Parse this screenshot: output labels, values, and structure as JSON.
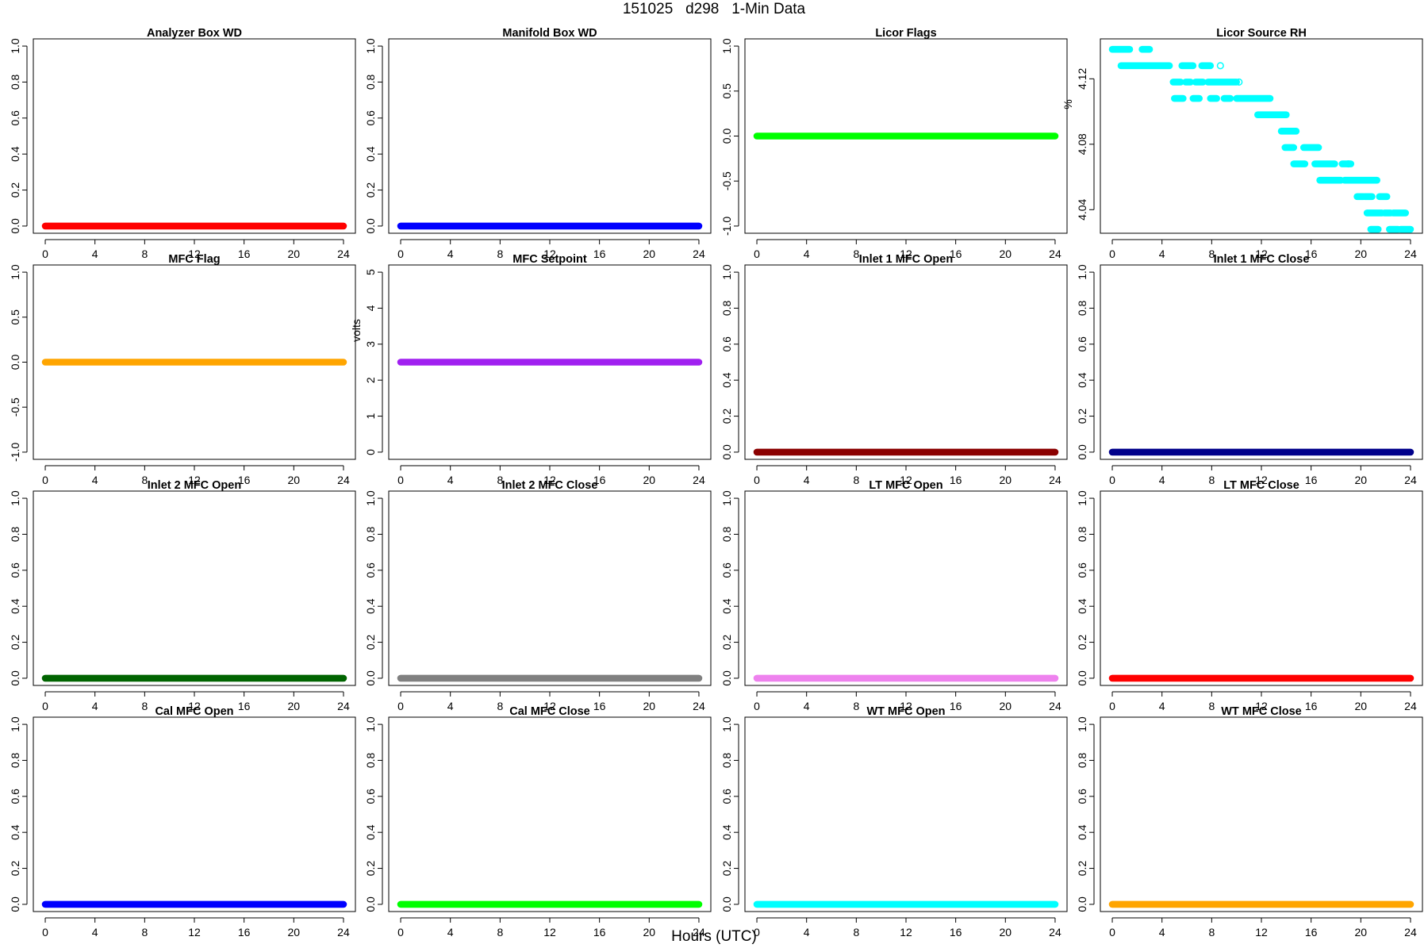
{
  "title": "151025   d298   1-Min Data",
  "xlabel": "Hours (UTC)",
  "chart_data": [
    {
      "type": "scatter",
      "title": "Analyzer Box WD",
      "ylabel": "",
      "color": "#ff0000",
      "xlim": [
        0,
        24
      ],
      "xticks": [
        0,
        4,
        8,
        12,
        16,
        20,
        24
      ],
      "ylim": [
        0,
        1
      ],
      "yticks": [
        0,
        0.2,
        0.4,
        0.6,
        0.8,
        1.0
      ],
      "ytick_labels": [
        "0.0",
        "0.2",
        "0.4",
        "0.6",
        "0.8",
        "1.0"
      ],
      "constant": 0.0,
      "x_range": [
        0,
        24
      ]
    },
    {
      "type": "scatter",
      "title": "Manifold Box WD",
      "ylabel": "",
      "color": "#0000ff",
      "xlim": [
        0,
        24
      ],
      "xticks": [
        0,
        4,
        8,
        12,
        16,
        20,
        24
      ],
      "ylim": [
        0,
        1
      ],
      "yticks": [
        0,
        0.2,
        0.4,
        0.6,
        0.8,
        1.0
      ],
      "ytick_labels": [
        "0.0",
        "0.2",
        "0.4",
        "0.6",
        "0.8",
        "1.0"
      ],
      "constant": 0.0,
      "x_range": [
        0,
        24
      ]
    },
    {
      "type": "scatter",
      "title": "Licor Flags",
      "ylabel": "",
      "color": "#00ff00",
      "xlim": [
        0,
        24
      ],
      "xticks": [
        0,
        4,
        8,
        12,
        16,
        20,
        24
      ],
      "ylim": [
        -1,
        1
      ],
      "yticks": [
        -1,
        -0.5,
        0,
        0.5,
        1
      ],
      "ytick_labels": [
        "-1.0",
        "-0.5",
        "0.0",
        "0.5",
        "1.0"
      ],
      "constant": 0.0,
      "x_range": [
        0,
        24
      ]
    },
    {
      "type": "scatter",
      "title": "Licor Source RH",
      "ylabel": "%",
      "color": "#00ffff",
      "xlim": [
        0,
        24
      ],
      "xticks": [
        0,
        4,
        8,
        12,
        16,
        20,
        24
      ],
      "ylim": [
        4.03,
        4.14
      ],
      "yticks": [
        4.04,
        4.08,
        4.12
      ],
      "ytick_labels": [
        "4.04",
        "4.08",
        "4.12"
      ],
      "segments": [
        {
          "y": 4.138,
          "x": [
            [
              0,
              1.4
            ],
            [
              2.4,
              3.0
            ]
          ]
        },
        {
          "y": 4.128,
          "x": [
            [
              0.7,
              4.6
            ],
            [
              5.6,
              6.5
            ],
            [
              7.2,
              7.9
            ]
          ]
        },
        {
          "y": 4.118,
          "x": [
            [
              4.9,
              5.5
            ],
            [
              5.9,
              6.3
            ],
            [
              6.7,
              7.3
            ],
            [
              7.7,
              10.0
            ]
          ]
        },
        {
          "y": 4.108,
          "x": [
            [
              5.0,
              5.7
            ],
            [
              6.5,
              7.0
            ],
            [
              7.9,
              8.4
            ],
            [
              9.0,
              9.5
            ],
            [
              10.0,
              12.7
            ]
          ]
        },
        {
          "y": 4.098,
          "x": [
            [
              11.7,
              14.0
            ]
          ]
        },
        {
          "y": 4.088,
          "x": [
            [
              13.6,
              14.8
            ]
          ]
        },
        {
          "y": 4.078,
          "x": [
            [
              13.9,
              14.6
            ],
            [
              15.4,
              16.6
            ]
          ]
        },
        {
          "y": 4.068,
          "x": [
            [
              14.6,
              15.5
            ],
            [
              16.3,
              17.9
            ],
            [
              18.5,
              19.2
            ]
          ]
        },
        {
          "y": 4.058,
          "x": [
            [
              16.7,
              18.4
            ],
            [
              18.7,
              21.3
            ]
          ]
        },
        {
          "y": 4.048,
          "x": [
            [
              19.7,
              20.2
            ],
            [
              20.3,
              20.9
            ],
            [
              21.5,
              22.1
            ]
          ]
        },
        {
          "y": 4.038,
          "x": [
            [
              20.5,
              21.7
            ],
            [
              21.9,
              22.4
            ],
            [
              22.6,
              23.6
            ]
          ]
        },
        {
          "y": 4.028,
          "x": [
            [
              20.8,
              21.4
            ],
            [
              22.3,
              23.0
            ],
            [
              23.2,
              24.0
            ]
          ]
        }
      ],
      "scatter_points": [
        {
          "x": 8.7,
          "y": 4.128
        },
        {
          "x": 10.2,
          "y": 4.118
        },
        {
          "x": 19.0,
          "y": 4.068
        }
      ]
    },
    {
      "type": "scatter",
      "title": "MFC Flag",
      "ylabel": "",
      "color": "#ffa500",
      "xlim": [
        0,
        24
      ],
      "xticks": [
        0,
        4,
        8,
        12,
        16,
        20,
        24
      ],
      "ylim": [
        -1,
        1
      ],
      "yticks": [
        -1,
        -0.5,
        0,
        0.5,
        1
      ],
      "ytick_labels": [
        "-1.0",
        "-0.5",
        "0.0",
        "0.5",
        "1.0"
      ],
      "constant": 0.0,
      "x_range": [
        0,
        24
      ]
    },
    {
      "type": "scatter",
      "title": "MFC Setpoint",
      "ylabel": "volts",
      "color": "#a020f0",
      "xlim": [
        0,
        24
      ],
      "xticks": [
        0,
        4,
        8,
        12,
        16,
        20,
        24
      ],
      "ylim": [
        0,
        5
      ],
      "yticks": [
        0,
        1,
        2,
        3,
        4,
        5
      ],
      "ytick_labels": [
        "0",
        "1",
        "2",
        "3",
        "4",
        "5"
      ],
      "constant": 2.5,
      "x_range": [
        0,
        24
      ]
    },
    {
      "type": "scatter",
      "title": "Inlet 1 MFC Open",
      "ylabel": "",
      "color": "#8b0000",
      "xlim": [
        0,
        24
      ],
      "xticks": [
        0,
        4,
        8,
        12,
        16,
        20,
        24
      ],
      "ylim": [
        0,
        1
      ],
      "yticks": [
        0,
        0.2,
        0.4,
        0.6,
        0.8,
        1.0
      ],
      "ytick_labels": [
        "0.0",
        "0.2",
        "0.4",
        "0.6",
        "0.8",
        "1.0"
      ],
      "constant": 0.0,
      "x_range": [
        0,
        24
      ]
    },
    {
      "type": "scatter",
      "title": "Inlet 1 MFC Close",
      "ylabel": "",
      "color": "#00008b",
      "xlim": [
        0,
        24
      ],
      "xticks": [
        0,
        4,
        8,
        12,
        16,
        20,
        24
      ],
      "ylim": [
        0,
        1
      ],
      "yticks": [
        0,
        0.2,
        0.4,
        0.6,
        0.8,
        1.0
      ],
      "ytick_labels": [
        "0.0",
        "0.2",
        "0.4",
        "0.6",
        "0.8",
        "1.0"
      ],
      "constant": 0.0,
      "x_range": [
        0,
        24
      ]
    },
    {
      "type": "scatter",
      "title": "Inlet 2 MFC Open",
      "ylabel": "",
      "color": "#006400",
      "xlim": [
        0,
        24
      ],
      "xticks": [
        0,
        4,
        8,
        12,
        16,
        20,
        24
      ],
      "ylim": [
        0,
        1
      ],
      "yticks": [
        0,
        0.2,
        0.4,
        0.6,
        0.8,
        1.0
      ],
      "ytick_labels": [
        "0.0",
        "0.2",
        "0.4",
        "0.6",
        "0.8",
        "1.0"
      ],
      "constant": 0.0,
      "x_range": [
        0,
        24
      ]
    },
    {
      "type": "scatter",
      "title": "Inlet 2 MFC Close",
      "ylabel": "",
      "color": "#808080",
      "xlim": [
        0,
        24
      ],
      "xticks": [
        0,
        4,
        8,
        12,
        16,
        20,
        24
      ],
      "ylim": [
        0,
        1
      ],
      "yticks": [
        0,
        0.2,
        0.4,
        0.6,
        0.8,
        1.0
      ],
      "ytick_labels": [
        "0.0",
        "0.2",
        "0.4",
        "0.6",
        "0.8",
        "1.0"
      ],
      "constant": 0.0,
      "x_range": [
        0,
        24
      ]
    },
    {
      "type": "scatter",
      "title": "LT MFC Open",
      "ylabel": "",
      "color": "#ee82ee",
      "xlim": [
        0,
        24
      ],
      "xticks": [
        0,
        4,
        8,
        12,
        16,
        20,
        24
      ],
      "ylim": [
        0,
        1
      ],
      "yticks": [
        0,
        0.2,
        0.4,
        0.6,
        0.8,
        1.0
      ],
      "ytick_labels": [
        "0.0",
        "0.2",
        "0.4",
        "0.6",
        "0.8",
        "1.0"
      ],
      "constant": 0.0,
      "x_range": [
        0,
        24
      ]
    },
    {
      "type": "scatter",
      "title": "LT MFC Close",
      "ylabel": "",
      "color": "#ff0000",
      "xlim": [
        0,
        24
      ],
      "xticks": [
        0,
        4,
        8,
        12,
        16,
        20,
        24
      ],
      "ylim": [
        0,
        1
      ],
      "yticks": [
        0,
        0.2,
        0.4,
        0.6,
        0.8,
        1.0
      ],
      "ytick_labels": [
        "0.0",
        "0.2",
        "0.4",
        "0.6",
        "0.8",
        "1.0"
      ],
      "constant": 0.0,
      "x_range": [
        0,
        24
      ]
    },
    {
      "type": "scatter",
      "title": "Cal MFC Open",
      "ylabel": "",
      "color": "#0000ff",
      "xlim": [
        0,
        24
      ],
      "xticks": [
        0,
        4,
        8,
        12,
        16,
        20,
        24
      ],
      "ylim": [
        0,
        1
      ],
      "yticks": [
        0,
        0.2,
        0.4,
        0.6,
        0.8,
        1.0
      ],
      "ytick_labels": [
        "0.0",
        "0.2",
        "0.4",
        "0.6",
        "0.8",
        "1.0"
      ],
      "constant": 0.0,
      "x_range": [
        0,
        24
      ]
    },
    {
      "type": "scatter",
      "title": "Cal MFC Close",
      "ylabel": "",
      "color": "#00ff00",
      "xlim": [
        0,
        24
      ],
      "xticks": [
        0,
        4,
        8,
        12,
        16,
        20,
        24
      ],
      "ylim": [
        0,
        1
      ],
      "yticks": [
        0,
        0.2,
        0.4,
        0.6,
        0.8,
        1.0
      ],
      "ytick_labels": [
        "0.0",
        "0.2",
        "0.4",
        "0.6",
        "0.8",
        "1.0"
      ],
      "constant": 0.0,
      "x_range": [
        0,
        24
      ]
    },
    {
      "type": "scatter",
      "title": "WT MFC Open",
      "ylabel": "",
      "color": "#00ffff",
      "xlim": [
        0,
        24
      ],
      "xticks": [
        0,
        4,
        8,
        12,
        16,
        20,
        24
      ],
      "ylim": [
        0,
        1
      ],
      "yticks": [
        0,
        0.2,
        0.4,
        0.6,
        0.8,
        1.0
      ],
      "ytick_labels": [
        "0.0",
        "0.2",
        "0.4",
        "0.6",
        "0.8",
        "1.0"
      ],
      "constant": 0.0,
      "x_range": [
        0,
        24
      ]
    },
    {
      "type": "scatter",
      "title": "WT MFC Close",
      "ylabel": "",
      "color": "#ffa500",
      "xlim": [
        0,
        24
      ],
      "xticks": [
        0,
        4,
        8,
        12,
        16,
        20,
        24
      ],
      "ylim": [
        0,
        1
      ],
      "yticks": [
        0,
        0.2,
        0.4,
        0.6,
        0.8,
        1.0
      ],
      "ytick_labels": [
        "0.0",
        "0.2",
        "0.4",
        "0.6",
        "0.8",
        "1.0"
      ],
      "constant": 0.0,
      "x_range": [
        0,
        24
      ]
    }
  ]
}
